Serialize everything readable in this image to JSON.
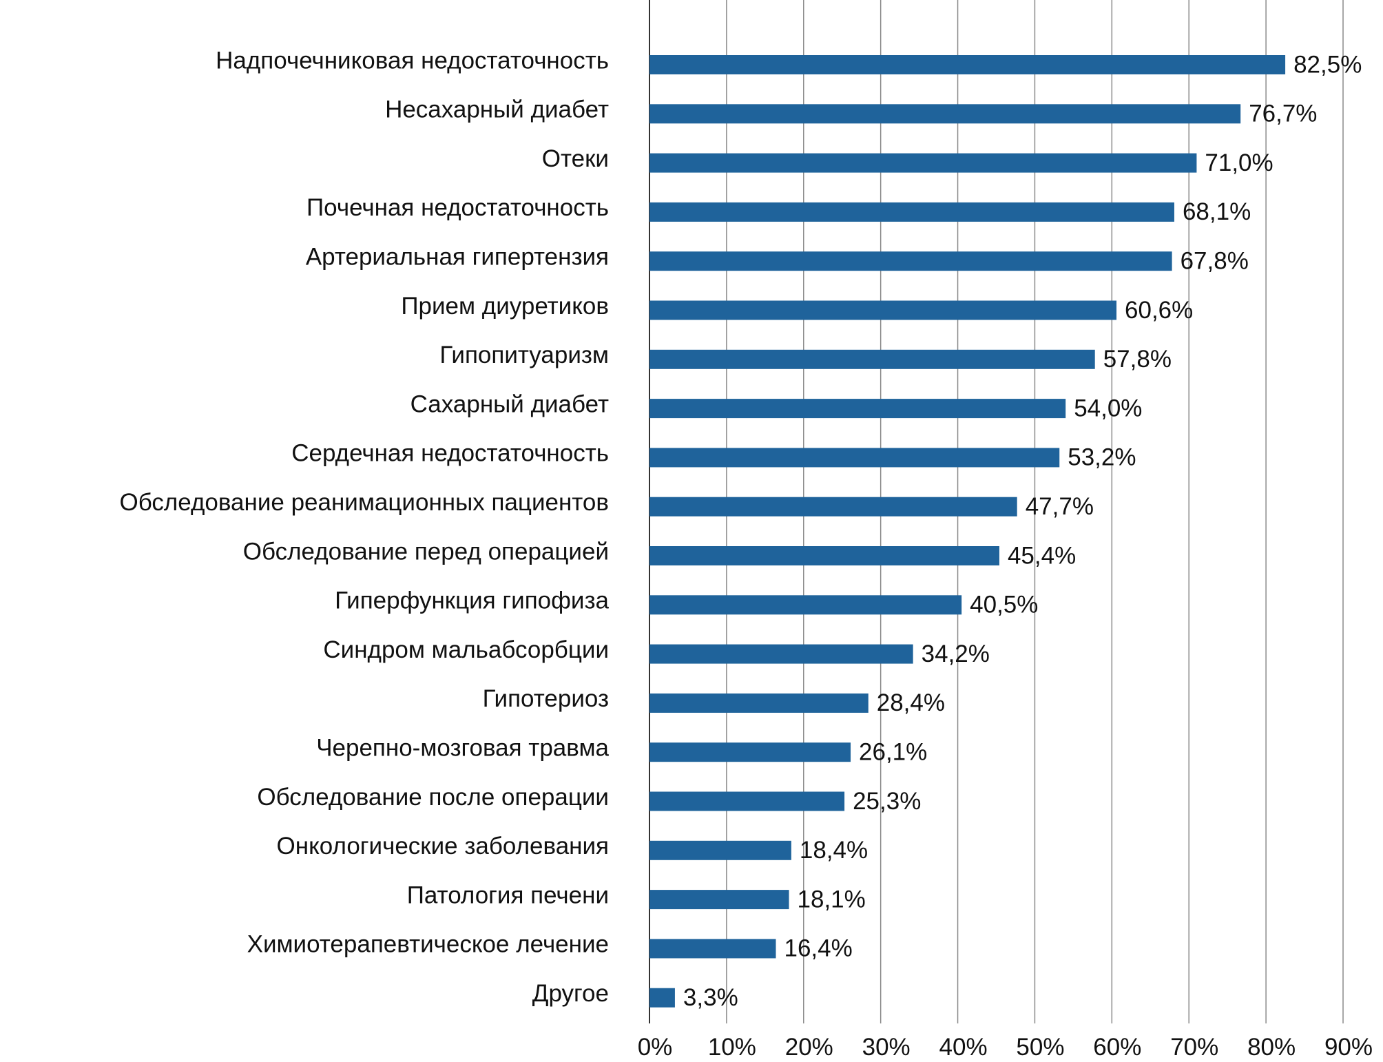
{
  "chart_data": {
    "type": "bar",
    "orientation": "horizontal",
    "title": "",
    "xlabel": "",
    "ylabel": "",
    "xlim": [
      0,
      90
    ],
    "grid": true,
    "bar_color": "#1f639b",
    "categories": [
      "Надпочечниковая недостаточность",
      "Несахарный диабет",
      "Отеки",
      "Почечная недостаточность",
      "Артериальная гипертензия",
      "Прием  диуретиков",
      "Гипопитуаризм",
      "Сахарный диабет",
      "Сердечная недостаточность",
      "Обследование реанимационных пациентов",
      "Обследование перед операцией",
      "Гиперфункция гипофиза",
      "Синдром мальабсорбции",
      "Гипотериоз",
      "Черепно-мозговая травма",
      "Обследование после операции",
      "Онкологические заболевания",
      "Патология печени",
      "Химиотерапевтическое лечение",
      "Другое"
    ],
    "values": [
      82.5,
      76.7,
      71.0,
      68.1,
      67.8,
      60.6,
      57.8,
      54.0,
      53.2,
      47.7,
      45.4,
      40.5,
      34.2,
      28.4,
      26.1,
      25.3,
      18.4,
      18.1,
      16.4,
      3.3
    ],
    "value_labels": [
      "82,5%",
      "76,7%",
      "71,0%",
      "68,1%",
      "67,8%",
      "60,6%",
      "57,8%",
      "54,0%",
      "53,2%",
      "47,7%",
      "45,4%",
      "40,5%",
      "34,2%",
      "28,4%",
      "26,1%",
      "25,3%",
      "18,4%",
      "18,1%",
      "16,4%",
      "3,3%"
    ],
    "x_ticks": [
      0,
      10,
      20,
      30,
      40,
      50,
      60,
      70,
      80,
      90
    ],
    "x_tick_labels": [
      "0%",
      "10%",
      "20%",
      "30%",
      "40%",
      "50%",
      "60%",
      "70%",
      "80%",
      "90%"
    ]
  }
}
